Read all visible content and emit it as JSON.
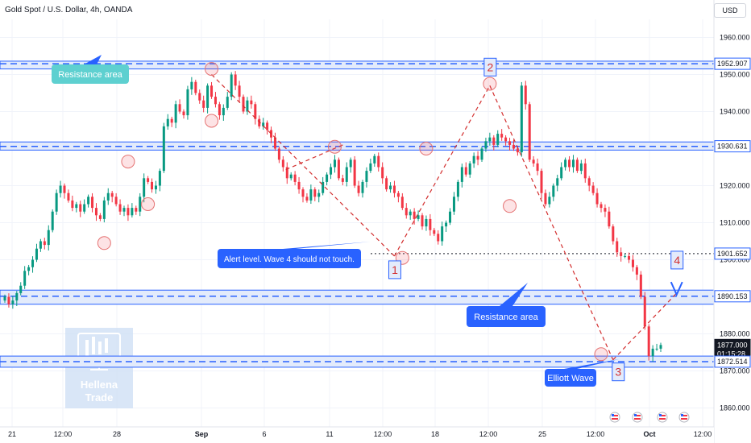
{
  "header": {
    "title": "Gold Spot / U.S. Dollar, 4h, OANDA",
    "currency": "USD"
  },
  "colors": {
    "bull": "#089981",
    "bear": "#f23645",
    "band": "#2962ff",
    "bandFill": "#e3ebfb",
    "callout": "#2962ff",
    "waveLine": "#d32f2f",
    "priceTag": "#131722"
  },
  "chart_data": {
    "type": "candlestick",
    "ylim": [
      1855,
      1965
    ],
    "yticks": [
      "1860.000",
      "1870.000",
      "1880.000",
      "1890.000",
      "1900.000",
      "1910.000",
      "1920.000",
      "1930.000",
      "1940.000",
      "1950.000",
      "1960.000"
    ],
    "xticks": [
      "21",
      "12:00",
      "28",
      "Sep",
      "6",
      "11",
      "12:00",
      "18",
      "12:00",
      "25",
      "12:00",
      "Oct",
      "12:00"
    ],
    "xtick_bold": [
      "Sep",
      "Oct"
    ],
    "price_labels": [
      {
        "text": "1952.907",
        "value": 1952.907,
        "style": "outline"
      },
      {
        "text": "1930.631",
        "value": 1930.631,
        "style": "outline"
      },
      {
        "text": "1901.652",
        "value": 1901.652,
        "style": "outline"
      },
      {
        "text": "1890.153",
        "value": 1890.153,
        "style": "outline"
      },
      {
        "text": "1877.000",
        "value": 1877.0,
        "style": "dark",
        "sub": "01:15:28"
      },
      {
        "text": "1872.514",
        "value": 1872.514,
        "style": "outline"
      }
    ],
    "bands": [
      {
        "top": 1953.6,
        "bottom": 1951.5,
        "dash": 1952.9
      },
      {
        "top": 1931.8,
        "bottom": 1929.6,
        "dash": 1930.6
      },
      {
        "top": 1891.8,
        "bottom": 1888.0,
        "dash": 1890.15
      },
      {
        "top": 1874.0,
        "bottom": 1871.0,
        "dash": 1872.5
      }
    ],
    "alert_level": 1901.65,
    "closes": [
      1890,
      1888,
      1889,
      1891,
      1893,
      1897,
      1898,
      1900,
      1903,
      1905,
      1904,
      1908,
      1913,
      1918,
      1920,
      1918,
      1916,
      1914,
      1915,
      1913,
      1915,
      1917,
      1914,
      1912,
      1911,
      1916,
      1918,
      1917,
      1915,
      1913,
      1914,
      1912,
      1914,
      1913,
      1917,
      1922,
      1921,
      1919,
      1920,
      1924,
      1936,
      1938,
      1937,
      1942,
      1940,
      1939,
      1946,
      1948,
      1945,
      1943,
      1941,
      1947,
      1944,
      1942,
      1939,
      1941,
      1944,
      1950,
      1947,
      1944,
      1940,
      1943,
      1942,
      1938,
      1936,
      1937,
      1935,
      1933,
      1930,
      1927,
      1925,
      1922,
      1923,
      1921,
      1919,
      1917,
      1916,
      1919,
      1917,
      1918,
      1921,
      1923,
      1925,
      1927,
      1922,
      1921,
      1925,
      1927,
      1920,
      1918,
      1921,
      1924,
      1926,
      1928,
      1925,
      1922,
      1919,
      1920,
      1918,
      1917,
      1914,
      1912,
      1913,
      1911,
      1912,
      1909,
      1911,
      1908,
      1907,
      1905,
      1909,
      1910,
      1913,
      1917,
      1921,
      1925,
      1923,
      1926,
      1928,
      1927,
      1930,
      1932,
      1933,
      1931,
      1934,
      1933,
      1932,
      1931,
      1930,
      1929,
      1947,
      1942,
      1927,
      1926,
      1924,
      1918,
      1915,
      1917,
      1920,
      1922,
      1925,
      1927,
      1925,
      1927,
      1924,
      1926,
      1922,
      1920,
      1918,
      1915,
      1914,
      1913,
      1909,
      1905,
      1902,
      1901,
      1901,
      1900,
      1898,
      1896,
      1890,
      1882,
      1874,
      1876,
      1876,
      1877
    ],
    "waves": [
      {
        "label": "1",
        "value": 1901,
        "bar": 98
      },
      {
        "label": "2",
        "value": 1947,
        "bar": 122
      },
      {
        "label": "3",
        "value": 1873,
        "bar": 153
      },
      {
        "label": "4",
        "value": 1891,
        "bar": 169
      }
    ],
    "highlight_circles": [
      {
        "bar": 25,
        "value": 1904.5
      },
      {
        "bar": 31,
        "value": 1926.5
      },
      {
        "bar": 36,
        "value": 1915.0
      },
      {
        "bar": 52,
        "value": 1951.5
      },
      {
        "bar": 52,
        "value": 1937.5
      },
      {
        "bar": 83,
        "value": 1930.5
      },
      {
        "bar": 100,
        "value": 1900.5
      },
      {
        "bar": 106,
        "value": 1930.0
      },
      {
        "bar": 122,
        "value": 1947.5
      },
      {
        "bar": 127,
        "value": 1914.5
      },
      {
        "bar": 150,
        "value": 1874.5
      }
    ],
    "annotations": [
      {
        "text": "Resistance area",
        "value": 1947,
        "pointer": 1953.0
      },
      {
        "text": "Alert level. Wave 4 should not touch.",
        "value": 1898.5,
        "pointer": 1901.6
      },
      {
        "text": "Resistance area",
        "value": 1881.5,
        "pointer": 1890.0
      },
      {
        "text": "Elliott Wave",
        "value": 1865.5,
        "pointer": 1870.0
      }
    ],
    "event_markers": 4
  },
  "watermark": {
    "line1": "Hellena",
    "line2": "Trade"
  }
}
